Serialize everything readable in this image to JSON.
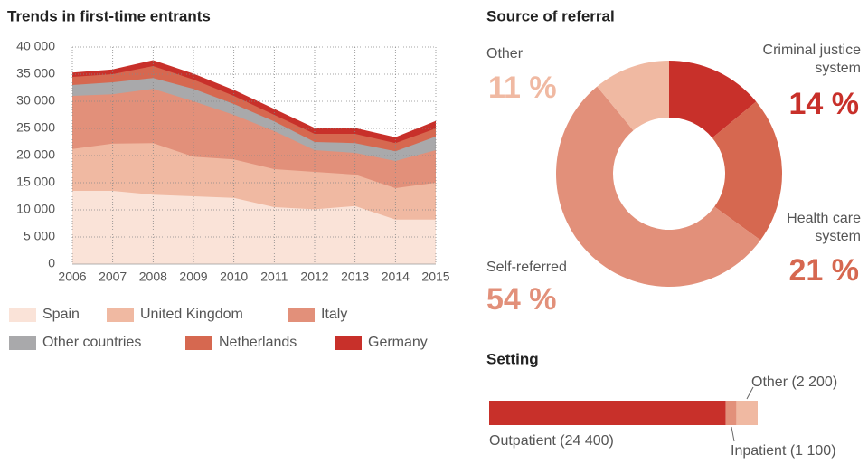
{
  "chart_data": [
    {
      "type": "stacked-area",
      "title": "Trends in first-time entrants",
      "x": [
        2006,
        2007,
        2008,
        2009,
        2010,
        2011,
        2012,
        2013,
        2014,
        2015
      ],
      "xlim": [
        2006,
        2015
      ],
      "xticks": [
        2006,
        2007,
        2008,
        2009,
        2010,
        2011,
        2012,
        2013,
        2014,
        2015
      ],
      "ylim": [
        0,
        40000
      ],
      "yticks": [
        0,
        {
          "value": 5000,
          "label": "5 000"
        },
        {
          "value": 10000,
          "label": "10 000"
        },
        {
          "value": 15000,
          "label": "15 000"
        },
        {
          "value": 20000,
          "label": "20 000"
        },
        {
          "value": 25000,
          "label": "25 000"
        },
        {
          "value": 30000,
          "label": "30 000"
        },
        {
          "value": 35000,
          "label": "35 000"
        },
        {
          "value": 40000,
          "label": "40 000"
        }
      ],
      "grid": true,
      "series": [
        {
          "name": "Spain",
          "color": "#fae3d8",
          "values": [
            13500,
            13500,
            12800,
            12500,
            12200,
            10500,
            10100,
            10700,
            8200,
            8200
          ]
        },
        {
          "name": "United Kingdom",
          "color": "#f0b9a2",
          "values": [
            7700,
            8700,
            9500,
            7300,
            7100,
            7000,
            6900,
            5800,
            5800,
            6800
          ]
        },
        {
          "name": "Italy",
          "color": "#e2907a",
          "values": [
            9800,
            9100,
            10000,
            10200,
            8200,
            7000,
            4000,
            4000,
            5000,
            6000
          ]
        },
        {
          "name": "Other countries",
          "color": "#a9a9ab",
          "values": [
            2000,
            2200,
            2000,
            2300,
            2000,
            1800,
            1500,
            1800,
            1800,
            2500
          ]
        },
        {
          "name": "Netherlands",
          "color": "#d66850",
          "values": [
            1500,
            1500,
            2200,
            1700,
            1500,
            1200,
            1500,
            1700,
            1500,
            1500
          ]
        },
        {
          "name": "Germany",
          "color": "#c8302a",
          "values": [
            700,
            800,
            1000,
            1000,
            1000,
            1000,
            1000,
            1000,
            1000,
            1300
          ]
        }
      ]
    },
    {
      "type": "donut",
      "title": "Source of referral",
      "categories": [
        "Criminal justice system",
        "Health care system",
        "Self-referred",
        "Other"
      ],
      "values": [
        14,
        21,
        54,
        11
      ],
      "value_labels": [
        "14 %",
        "21 %",
        "54 %",
        "11 %"
      ],
      "colors": [
        "#c8302a",
        "#d66850",
        "#e2907a",
        "#f0b9a2"
      ]
    },
    {
      "type": "stacked-hbar",
      "title": "Setting",
      "categories": [
        "Outpatient",
        "Inpatient",
        "Other"
      ],
      "values": [
        24400,
        1100,
        2200
      ],
      "value_labels": [
        "Outpatient (24 400)",
        "Inpatient (1 100)",
        "Other (2 200)"
      ],
      "colors": [
        "#c8302a",
        "#e2907a",
        "#f0b9a2"
      ]
    }
  ]
}
